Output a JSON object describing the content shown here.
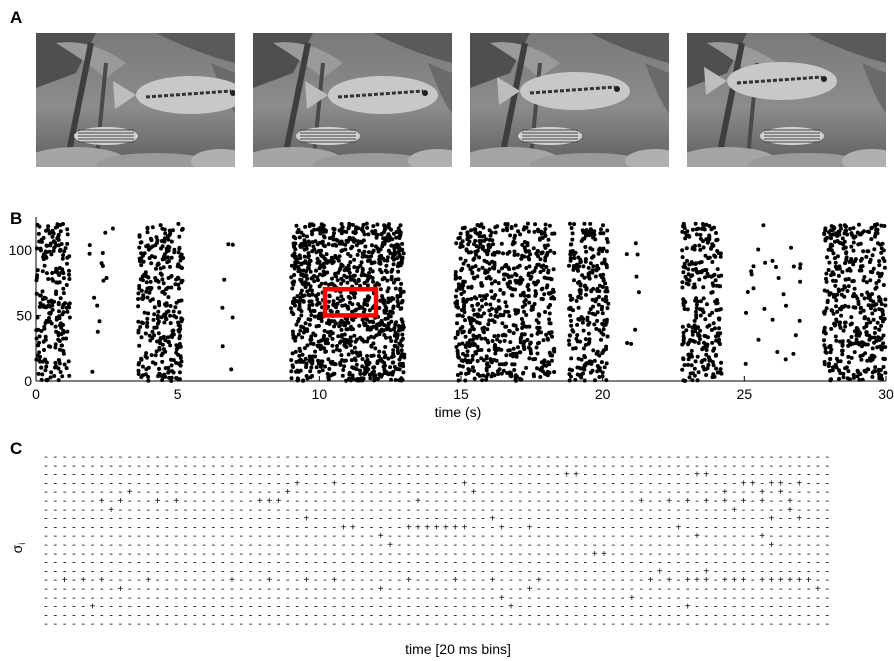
{
  "panels": {
    "a": {
      "label": "A"
    },
    "b": {
      "label": "B"
    },
    "c": {
      "label": "C"
    }
  },
  "frames_panel": {
    "count": 4,
    "content": "grayscale aquarium video frames: large fish mid-frame over a smaller striped fish and rocks"
  },
  "chart_data": [
    {
      "panel": "B",
      "type": "scatter",
      "title": "",
      "xlabel": "time (s)",
      "ylabel": "",
      "xlim": [
        0,
        30
      ],
      "ylim": [
        0,
        125
      ],
      "xticks": [
        0,
        5,
        10,
        15,
        20,
        25,
        30
      ],
      "yticks": [
        0,
        50,
        100
      ],
      "grid": false,
      "marker_color": "#000000",
      "activity_bursts_s": [
        [
          0.0,
          1.2
        ],
        [
          3.6,
          5.2
        ],
        [
          9.0,
          13.0
        ],
        [
          14.8,
          18.3
        ],
        [
          18.8,
          20.2
        ],
        [
          22.8,
          24.2
        ],
        [
          27.8,
          30.0
        ]
      ],
      "sparse_intervals_s": [
        [
          1.8,
          2.8
        ],
        [
          6.5,
          7.0
        ],
        [
          20.8,
          21.4
        ],
        [
          25.0,
          27.0
        ]
      ],
      "highlight_box": {
        "x": [
          10.2,
          12.0
        ],
        "y": [
          50,
          70
        ],
        "color": "#ff0000"
      }
    },
    {
      "panel": "C",
      "type": "heatmap",
      "title": "",
      "xlabel": "time [20 ms bins]",
      "ylabel": "σ",
      "ylabel_subscript": "i",
      "rows": 20,
      "cols": 85,
      "inactive_symbol": "-",
      "active_symbol": "+",
      "active_cells": [
        [
          2,
          56
        ],
        [
          2,
          57
        ],
        [
          2,
          70
        ],
        [
          2,
          71
        ],
        [
          3,
          27
        ],
        [
          3,
          31
        ],
        [
          3,
          45
        ],
        [
          3,
          75
        ],
        [
          3,
          76
        ],
        [
          3,
          78
        ],
        [
          3,
          79
        ],
        [
          3,
          81
        ],
        [
          4,
          9
        ],
        [
          4,
          26
        ],
        [
          4,
          46
        ],
        [
          4,
          73
        ],
        [
          4,
          77
        ],
        [
          4,
          79
        ],
        [
          5,
          6
        ],
        [
          5,
          8
        ],
        [
          5,
          12
        ],
        [
          5,
          14
        ],
        [
          5,
          23
        ],
        [
          5,
          24
        ],
        [
          5,
          25
        ],
        [
          5,
          40
        ],
        [
          5,
          64
        ],
        [
          5,
          67
        ],
        [
          5,
          69
        ],
        [
          5,
          71
        ],
        [
          5,
          73
        ],
        [
          5,
          75
        ],
        [
          5,
          77
        ],
        [
          5,
          80
        ],
        [
          6,
          7
        ],
        [
          6,
          74
        ],
        [
          6,
          80
        ],
        [
          7,
          28
        ],
        [
          7,
          48
        ],
        [
          7,
          78
        ],
        [
          7,
          81
        ],
        [
          8,
          32
        ],
        [
          8,
          33
        ],
        [
          8,
          39
        ],
        [
          8,
          40
        ],
        [
          8,
          41
        ],
        [
          8,
          42
        ],
        [
          8,
          43
        ],
        [
          8,
          44
        ],
        [
          8,
          45
        ],
        [
          8,
          49
        ],
        [
          8,
          52
        ],
        [
          8,
          68
        ],
        [
          9,
          36
        ],
        [
          9,
          70
        ],
        [
          9,
          77
        ],
        [
          10,
          37
        ],
        [
          10,
          78
        ],
        [
          11,
          59
        ],
        [
          11,
          60
        ],
        [
          13,
          66
        ],
        [
          13,
          71
        ],
        [
          14,
          2
        ],
        [
          14,
          4
        ],
        [
          14,
          6
        ],
        [
          14,
          11
        ],
        [
          14,
          20
        ],
        [
          14,
          24
        ],
        [
          14,
          28
        ],
        [
          14,
          31
        ],
        [
          14,
          39
        ],
        [
          14,
          44
        ],
        [
          14,
          48
        ],
        [
          14,
          53
        ],
        [
          14,
          65
        ],
        [
          14,
          67
        ],
        [
          14,
          69
        ],
        [
          14,
          70
        ],
        [
          14,
          71
        ],
        [
          14,
          73
        ],
        [
          14,
          74
        ],
        [
          14,
          75
        ],
        [
          14,
          77
        ],
        [
          14,
          78
        ],
        [
          14,
          79
        ],
        [
          14,
          80
        ],
        [
          14,
          81
        ],
        [
          14,
          82
        ],
        [
          15,
          8
        ],
        [
          15,
          36
        ],
        [
          15,
          52
        ],
        [
          15,
          83
        ],
        [
          16,
          49
        ],
        [
          16,
          63
        ],
        [
          17,
          5
        ],
        [
          17,
          50
        ],
        [
          17,
          69
        ]
      ]
    }
  ]
}
